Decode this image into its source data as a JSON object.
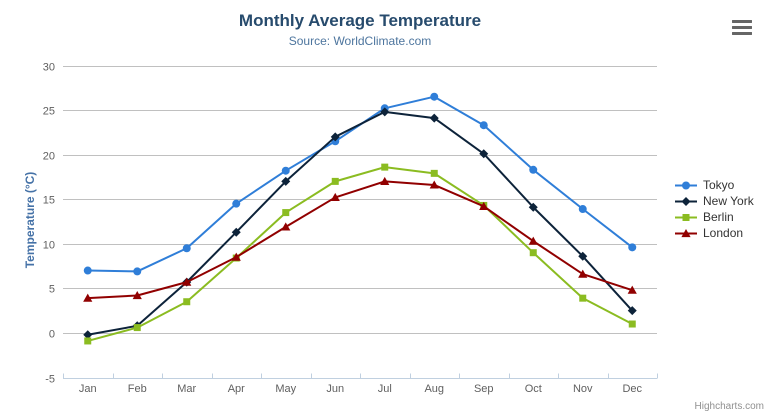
{
  "chart": {
    "credits": "Highcharts.com",
    "menu_icon": "hamburger-icon",
    "colors": {
      "title": "#274b6d",
      "subtitle": "#4d759e",
      "y_axis_title": "#4572A7",
      "axis_labels": "#606060",
      "gridline": "#C0C0C0",
      "axis_line": "#C0D0E0",
      "legend_text": "#333333",
      "credits_text": "#909090"
    }
  },
  "chart_data": {
    "type": "line",
    "title": "Monthly Average Temperature",
    "subtitle": "Source: WorldClimate.com",
    "xlabel": "",
    "ylabel": "Temperature (°C)",
    "categories": [
      "Jan",
      "Feb",
      "Mar",
      "Apr",
      "May",
      "Jun",
      "Jul",
      "Aug",
      "Sep",
      "Oct",
      "Nov",
      "Dec"
    ],
    "series": [
      {
        "name": "Tokyo",
        "color": "#2f7ed8",
        "marker": "circle",
        "values": [
          7.0,
          6.9,
          9.5,
          14.5,
          18.2,
          21.5,
          25.2,
          26.5,
          23.3,
          18.3,
          13.9,
          9.6
        ]
      },
      {
        "name": "New York",
        "color": "#0d233a",
        "marker": "diamond",
        "values": [
          -0.2,
          0.8,
          5.7,
          11.3,
          17.0,
          22.0,
          24.8,
          24.1,
          20.1,
          14.1,
          8.6,
          2.5
        ]
      },
      {
        "name": "Berlin",
        "color": "#8bbc21",
        "marker": "square",
        "values": [
          -0.9,
          0.6,
          3.5,
          8.4,
          13.5,
          17.0,
          18.6,
          17.9,
          14.3,
          9.0,
          3.9,
          1.0
        ]
      },
      {
        "name": "London",
        "color": "#910000",
        "marker": "triangle",
        "values": [
          3.9,
          4.2,
          5.7,
          8.5,
          11.9,
          15.2,
          17.0,
          16.6,
          14.2,
          10.3,
          6.6,
          4.8
        ]
      }
    ],
    "ylim": [
      -5,
      30
    ],
    "yticks": [
      -5,
      0,
      5,
      10,
      15,
      20,
      25,
      30
    ],
    "grid": true,
    "legend_position": "right"
  }
}
